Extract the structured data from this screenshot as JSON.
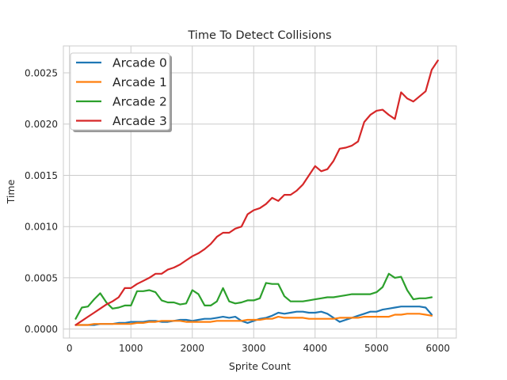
{
  "chart_data": {
    "type": "line",
    "title": "Time To Detect Collisions",
    "xlabel": "Sprite Count",
    "ylabel": "Time",
    "xlim": [
      -100,
      6300
    ],
    "ylim": [
      -8.75e-05,
      0.0027625
    ],
    "xticks": [
      0,
      1000,
      2000,
      3000,
      4000,
      5000,
      6000
    ],
    "xtick_labels": [
      "0",
      "1000",
      "2000",
      "3000",
      "4000",
      "5000",
      "6000"
    ],
    "yticks": [
      0.0,
      0.0005,
      0.001,
      0.0015,
      0.002,
      0.0025
    ],
    "ytick_labels": [
      "0.0000",
      "0.0005",
      "0.0010",
      "0.0015",
      "0.0020",
      "0.0025"
    ],
    "grid": true,
    "legend_position": "upper-left",
    "colors": [
      "#1f77b4",
      "#ff7f0e",
      "#2ca02c",
      "#d62728"
    ],
    "series": [
      {
        "name": "Arcade 0",
        "x": [
          100,
          200,
          300,
          400,
          500,
          600,
          700,
          800,
          900,
          1000,
          1100,
          1200,
          1300,
          1400,
          1500,
          1600,
          1700,
          1800,
          1900,
          2000,
          2100,
          2200,
          2300,
          2400,
          2500,
          2600,
          2700,
          2800,
          2900,
          3000,
          3100,
          3200,
          3300,
          3400,
          3500,
          3600,
          3700,
          3800,
          3900,
          4000,
          4100,
          4200,
          4300,
          4400,
          4500,
          4600,
          4700,
          4800,
          4900,
          5000,
          5100,
          5200,
          5300,
          5400,
          5500,
          5600,
          5700,
          5800,
          5900
        ],
        "y": [
          4e-05,
          4e-05,
          4e-05,
          4e-05,
          5e-05,
          5e-05,
          5e-05,
          6e-05,
          6e-05,
          7e-05,
          7e-05,
          7e-05,
          8e-05,
          8e-05,
          7e-05,
          7e-05,
          8e-05,
          9e-05,
          9e-05,
          8e-05,
          9e-05,
          0.0001,
          0.0001,
          0.00011,
          0.00012,
          0.00011,
          0.00012,
          8e-05,
          6e-05,
          8e-05,
          0.0001,
          0.00011,
          0.00013,
          0.00016,
          0.00015,
          0.00016,
          0.00017,
          0.00017,
          0.00016,
          0.00016,
          0.00017,
          0.00015,
          0.00011,
          7e-05,
          9e-05,
          0.00011,
          0.00013,
          0.00015,
          0.00017,
          0.00017,
          0.00019,
          0.0002,
          0.00021,
          0.00022,
          0.00022,
          0.00022,
          0.00022,
          0.00021,
          0.00014
        ]
      },
      {
        "name": "Arcade 1",
        "x": [
          100,
          200,
          300,
          400,
          500,
          600,
          700,
          800,
          900,
          1000,
          1100,
          1200,
          1300,
          1400,
          1500,
          1600,
          1700,
          1800,
          1900,
          2000,
          2100,
          2200,
          2300,
          2400,
          2500,
          2600,
          2700,
          2800,
          2900,
          3000,
          3100,
          3200,
          3300,
          3400,
          3500,
          3600,
          3700,
          3800,
          3900,
          4000,
          4100,
          4200,
          4300,
          4400,
          4500,
          4600,
          4700,
          4800,
          4900,
          5000,
          5100,
          5200,
          5300,
          5400,
          5500,
          5600,
          5700,
          5800,
          5900
        ],
        "y": [
          4e-05,
          4e-05,
          4e-05,
          5e-05,
          5e-05,
          5e-05,
          5e-05,
          5e-05,
          5e-05,
          5e-05,
          6e-05,
          6e-05,
          7e-05,
          7e-05,
          8e-05,
          8e-05,
          8e-05,
          8e-05,
          7e-05,
          7e-05,
          7e-05,
          7e-05,
          7e-05,
          8e-05,
          8e-05,
          8e-05,
          8e-05,
          8e-05,
          9e-05,
          9e-05,
          9e-05,
          0.0001,
          0.0001,
          0.00012,
          0.00011,
          0.00011,
          0.00011,
          0.00011,
          0.0001,
          0.0001,
          0.0001,
          0.0001,
          0.0001,
          0.00011,
          0.00011,
          0.00011,
          0.00011,
          0.00012,
          0.00012,
          0.00012,
          0.00012,
          0.00012,
          0.00014,
          0.00014,
          0.00015,
          0.00015,
          0.00015,
          0.00014,
          0.00013
        ]
      },
      {
        "name": "Arcade 2",
        "x": [
          100,
          200,
          300,
          400,
          500,
          600,
          700,
          800,
          900,
          1000,
          1100,
          1200,
          1300,
          1400,
          1500,
          1600,
          1700,
          1800,
          1900,
          2000,
          2100,
          2200,
          2300,
          2400,
          2500,
          2600,
          2700,
          2800,
          2900,
          3000,
          3100,
          3200,
          3300,
          3400,
          3500,
          3600,
          3700,
          3800,
          3900,
          4000,
          4100,
          4200,
          4300,
          4400,
          4500,
          4600,
          4700,
          4800,
          4900,
          5000,
          5100,
          5200,
          5300,
          5400,
          5500,
          5600,
          5700,
          5800,
          5900
        ],
        "y": [
          0.0001,
          0.00021,
          0.00022,
          0.00029,
          0.00035,
          0.00026,
          0.0002,
          0.00021,
          0.00023,
          0.00023,
          0.00037,
          0.00037,
          0.00038,
          0.00036,
          0.00028,
          0.00026,
          0.00026,
          0.00024,
          0.00025,
          0.00038,
          0.00034,
          0.00023,
          0.00023,
          0.00027,
          0.0004,
          0.00027,
          0.00025,
          0.00026,
          0.00028,
          0.00028,
          0.0003,
          0.00045,
          0.00044,
          0.00044,
          0.00032,
          0.00027,
          0.00027,
          0.00027,
          0.00028,
          0.00029,
          0.0003,
          0.00031,
          0.00031,
          0.00032,
          0.00033,
          0.00034,
          0.00034,
          0.00034,
          0.00034,
          0.00036,
          0.00041,
          0.00054,
          0.0005,
          0.00051,
          0.00038,
          0.00029,
          0.0003,
          0.0003,
          0.00031
        ]
      },
      {
        "name": "Arcade 3",
        "x": [
          100,
          200,
          300,
          400,
          500,
          600,
          700,
          800,
          900,
          1000,
          1100,
          1200,
          1300,
          1400,
          1500,
          1600,
          1700,
          1800,
          1900,
          2000,
          2100,
          2200,
          2300,
          2400,
          2500,
          2600,
          2700,
          2800,
          2900,
          3000,
          3100,
          3200,
          3300,
          3400,
          3500,
          3600,
          3700,
          3800,
          3900,
          4000,
          4100,
          4200,
          4300,
          4400,
          4500,
          4600,
          4700,
          4800,
          4900,
          5000,
          5100,
          5200,
          5300,
          5400,
          5500,
          5600,
          5700,
          5800,
          5900,
          6000
        ],
        "y": [
          4e-05,
          8e-05,
          0.00012,
          0.00016,
          0.0002,
          0.00024,
          0.00027,
          0.00031,
          0.0004,
          0.0004,
          0.00044,
          0.00047,
          0.0005,
          0.00054,
          0.00054,
          0.00058,
          0.0006,
          0.00063,
          0.00067,
          0.00071,
          0.00074,
          0.00078,
          0.00083,
          0.0009,
          0.00094,
          0.00094,
          0.00098,
          0.001,
          0.00112,
          0.00116,
          0.00118,
          0.00122,
          0.00128,
          0.00125,
          0.00131,
          0.00131,
          0.00135,
          0.00141,
          0.0015,
          0.00159,
          0.00154,
          0.00156,
          0.00164,
          0.00176,
          0.00177,
          0.00179,
          0.00183,
          0.00202,
          0.00209,
          0.00213,
          0.00214,
          0.00209,
          0.00205,
          0.00231,
          0.00225,
          0.00222,
          0.00227,
          0.00232,
          0.00253,
          0.00262
        ]
      }
    ]
  }
}
